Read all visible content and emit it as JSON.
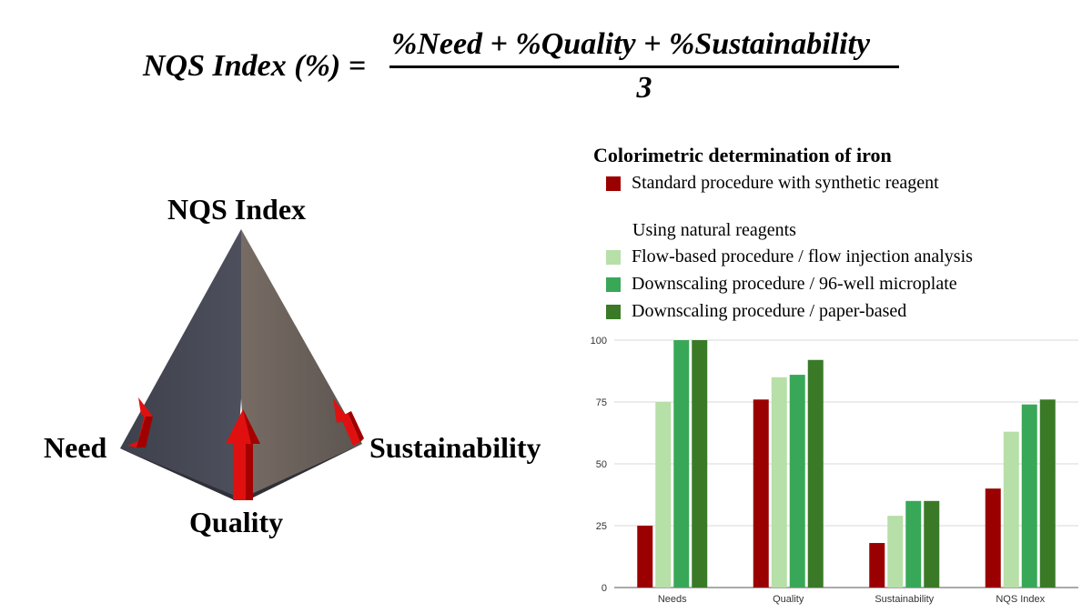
{
  "formula": {
    "lhs": "NQS Index (%) =",
    "numerator": "%Need + %Quality + %Sustainability",
    "denominator": "3"
  },
  "pyramid": {
    "apex_label": "NQS Index",
    "left_label": "Need",
    "bottom_label": "Quality",
    "right_label": "Sustainability",
    "colors": {
      "left_face": "#4a4d58",
      "right_face": "#6d635d",
      "arrow": "#e01010"
    }
  },
  "legend": {
    "title": "Colorimetric determination of iron",
    "standard_label": "Standard procedure with synthetic reagent",
    "natural_heading": "Using natural reagents",
    "flow_label": "Flow-based procedure / flow injection analysis",
    "microplate_label": "Downscaling procedure / 96-well microplate",
    "paper_label": "Downscaling procedure / paper-based"
  },
  "chart_data": {
    "type": "bar",
    "title": "",
    "xlabel": "",
    "ylabel": "",
    "ylim": [
      0,
      100
    ],
    "yticks": [
      0,
      25,
      50,
      75,
      100
    ],
    "grid": true,
    "categories": [
      "Needs",
      "Quality",
      "Sustainability",
      "NQS Index"
    ],
    "series": [
      {
        "name": "Standard procedure with synthetic reagent",
        "color": "#9b0000",
        "values": [
          25,
          76,
          18,
          40
        ]
      },
      {
        "name": "Flow-based procedure / flow injection analysis",
        "color": "#b7dfa8",
        "values": [
          75,
          85,
          29,
          63
        ]
      },
      {
        "name": "Downscaling procedure / 96-well microplate",
        "color": "#38a858",
        "values": [
          100,
          86,
          35,
          74
        ]
      },
      {
        "name": "Downscaling procedure / paper-based",
        "color": "#3a7a27",
        "values": [
          100,
          92,
          35,
          76
        ]
      }
    ]
  }
}
